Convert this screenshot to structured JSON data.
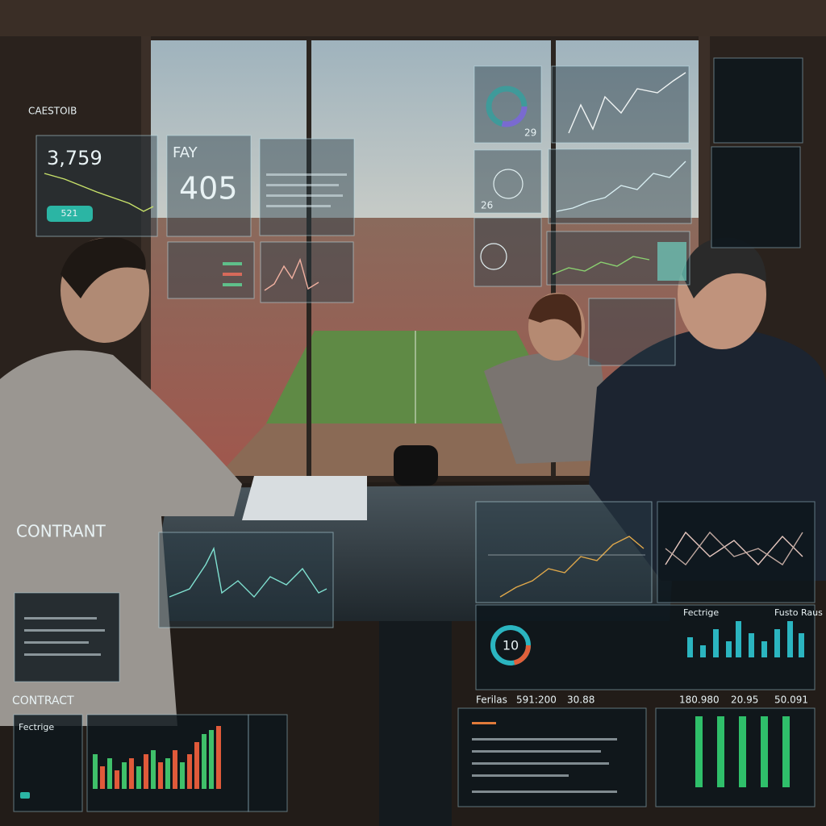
{
  "overlay": {
    "top_left": {
      "heading": "CAESTOIB",
      "value": "3,759",
      "badge": "521"
    },
    "fay_panel": {
      "label": "FAY",
      "value": "405"
    },
    "donut_panel": {
      "value": "29"
    },
    "dial_panel": {
      "value": "26"
    },
    "side_headings": [
      "CONTRANT",
      "CONTRACT"
    ],
    "bottom_left_panel": {
      "title": "Fectrige"
    },
    "right_panel": {
      "title": "Fectrige",
      "corner_label": "Fusto Raus",
      "gauge_value": "10"
    },
    "stat_row": [
      "Ferilas",
      "591:200",
      "30.88",
      "180.980",
      "20.95",
      "50.091"
    ]
  }
}
